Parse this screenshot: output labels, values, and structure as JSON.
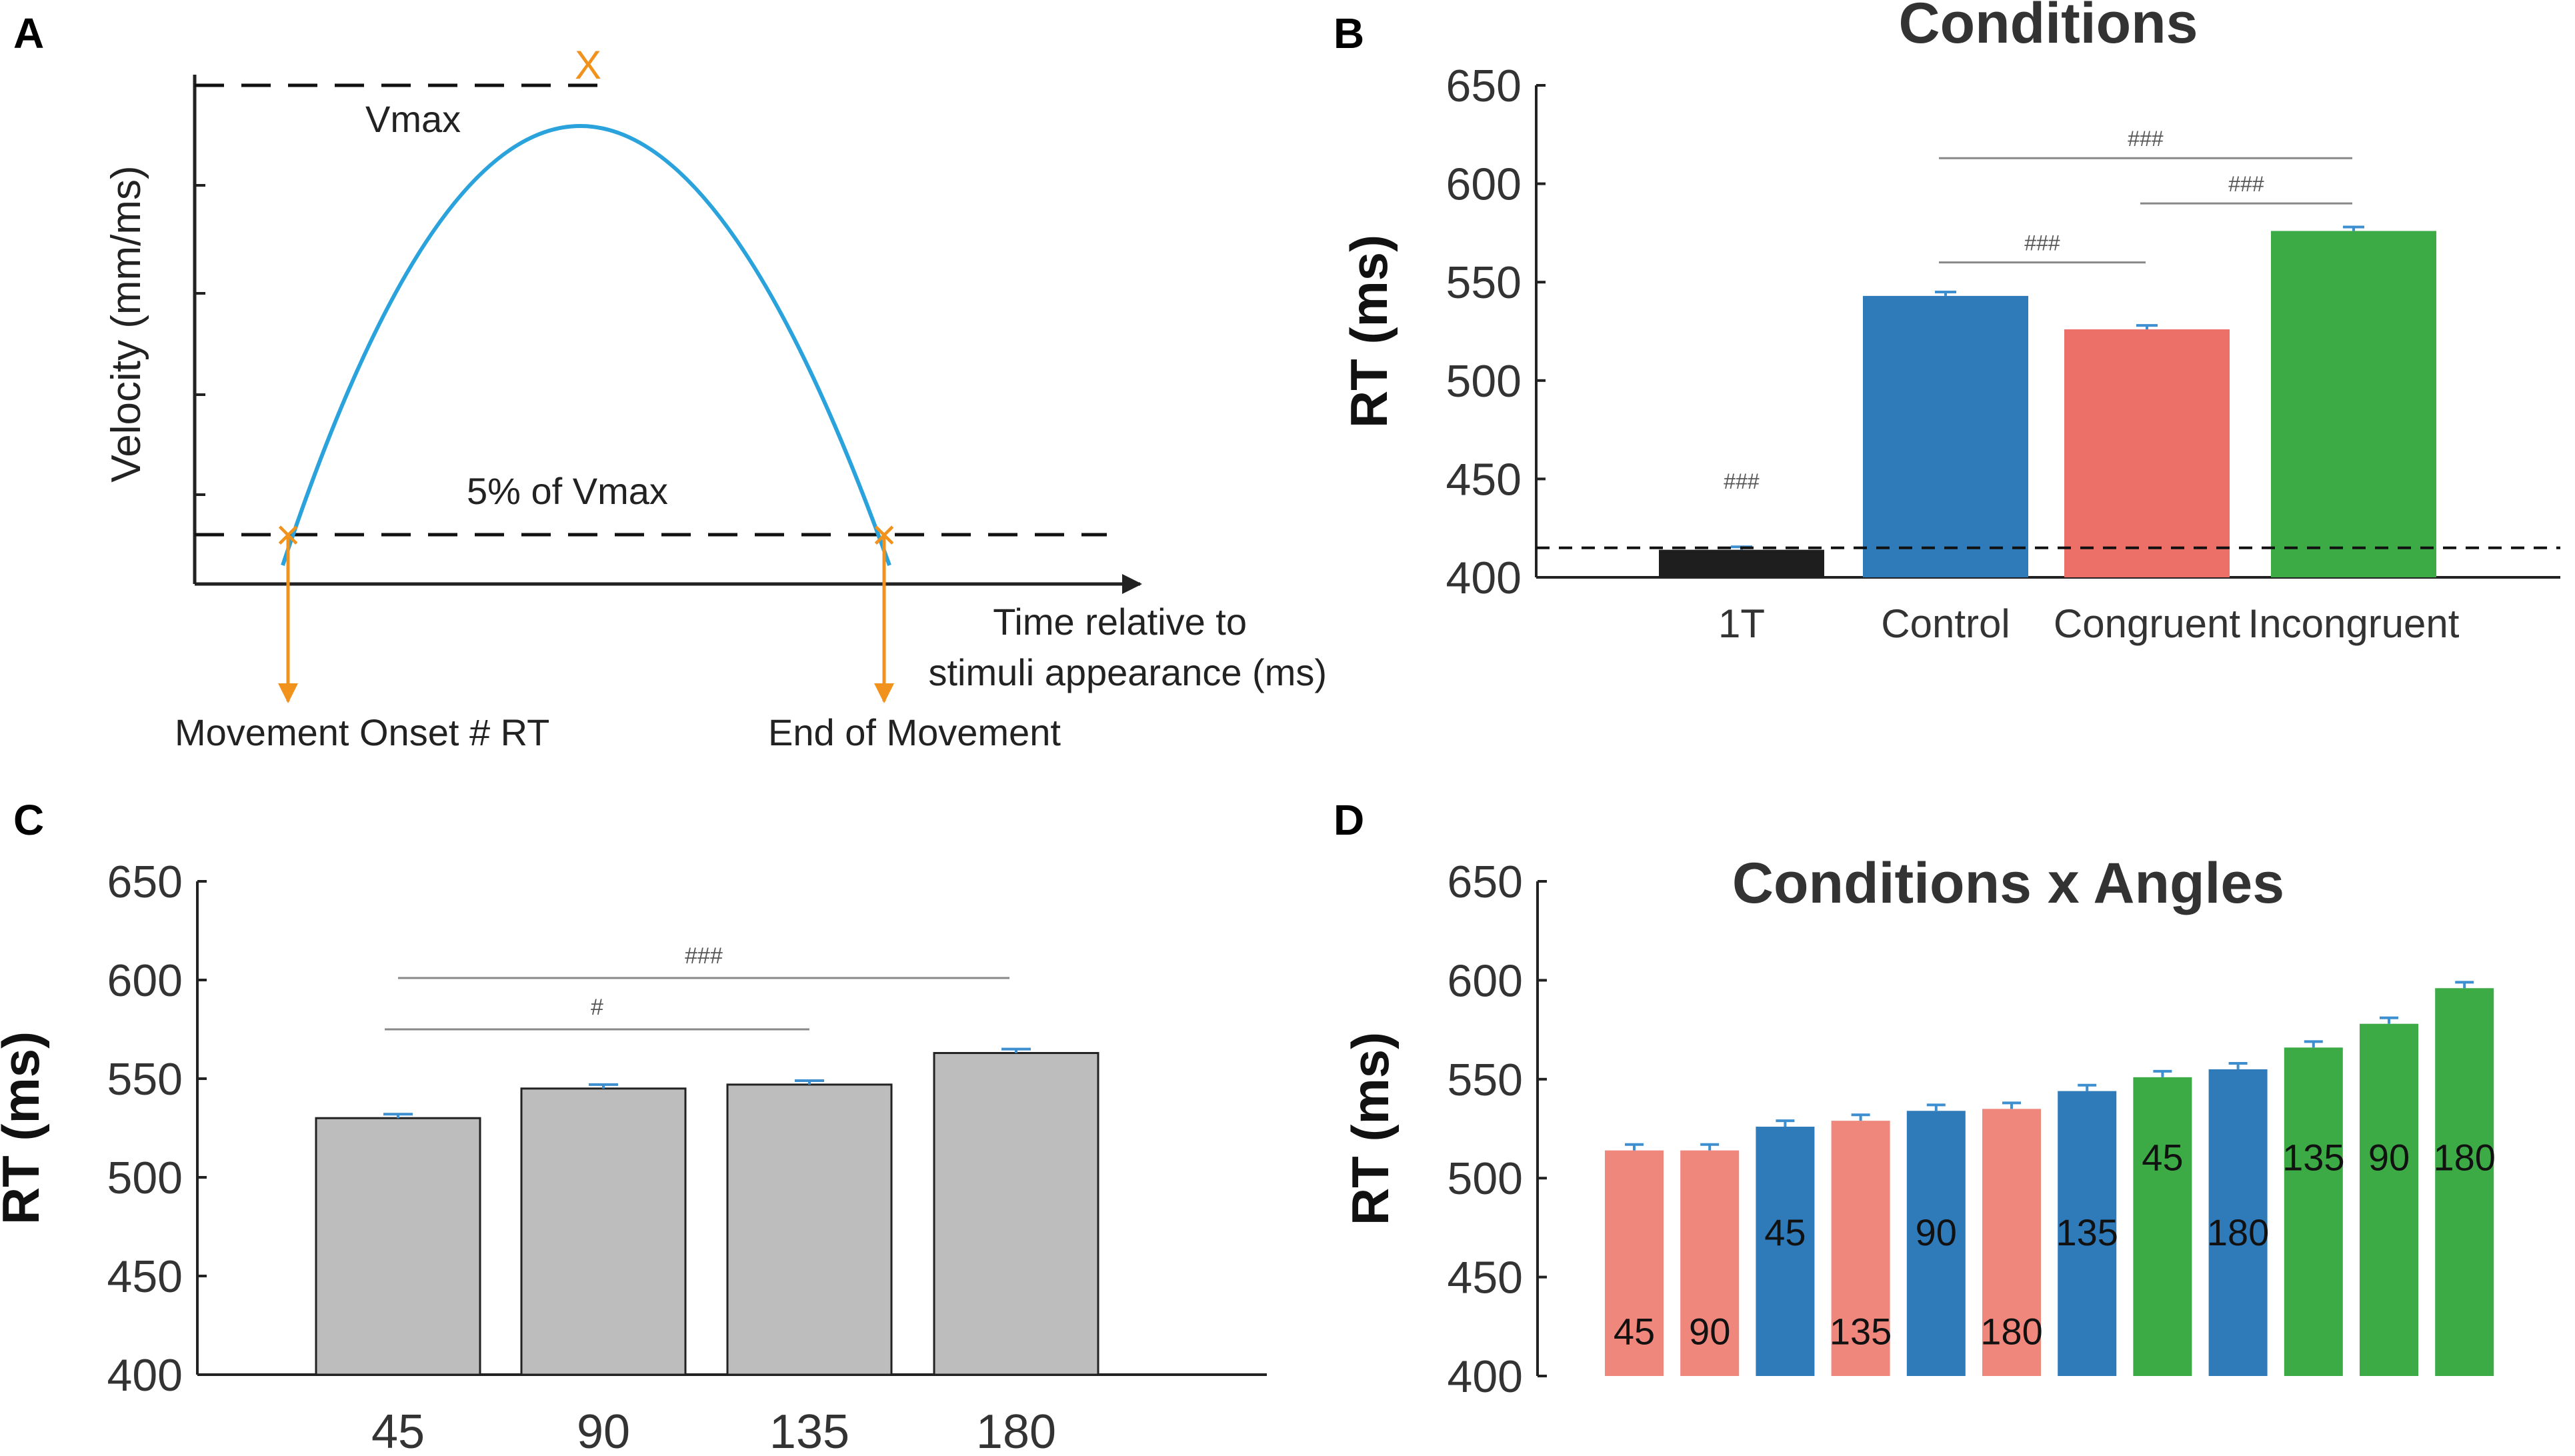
{
  "colors": {
    "control": "#2f7ab9",
    "congruent": "#ec7068",
    "congruent_d": "#ef877c",
    "incongruent": "#3caa45",
    "one_target": "#1e1e1e",
    "grey_bar": "#bdbdbd",
    "velocity_curve": "#2aa2dc",
    "marker": "#f0921c",
    "error_bar": "#3e8fd0"
  },
  "chart_data": [
    {
      "panel": "A",
      "type": "line",
      "title": "",
      "xlabel": "Time relative to stimuli appearance (ms)",
      "xlabel_lines": [
        "Time relative to",
        "stimuli appearance (ms)"
      ],
      "ylabel": "Velocity (mm/ms)",
      "labels": {
        "vmax": "Vmax",
        "threshold": "5% of Vmax",
        "peak_marker": "X",
        "onset_marker": "×",
        "end_marker": "×"
      },
      "annotations": {
        "onset": "Movement Onset # RT",
        "end": "End of Movement"
      },
      "curve": {
        "x": [
          0,
          0.5,
          1
        ],
        "y": [
          0.05,
          1,
          0.05
        ],
        "shape": "inverted parabola"
      }
    },
    {
      "panel": "B",
      "type": "bar",
      "title": "Conditions",
      "xlabel": "",
      "ylabel": "RT (ms)",
      "ylim": [
        400,
        650
      ],
      "yticks": [
        400,
        450,
        500,
        550,
        600,
        650
      ],
      "categories": [
        "1T",
        "Control",
        "Congruent",
        "Incongruent"
      ],
      "values": [
        414,
        543,
        526,
        576
      ],
      "errors": [
        1.5,
        2,
        2,
        2
      ],
      "bar_colors": [
        "one_target",
        "control",
        "congruent",
        "incongruent"
      ],
      "reference_line": 415,
      "significance": [
        {
          "from": 1,
          "to": 3,
          "label": "###",
          "y": 613
        },
        {
          "from": 2,
          "to": 3,
          "label": "###",
          "y": 590
        },
        {
          "from": 1,
          "to": 2,
          "label": "###",
          "y": 560
        },
        {
          "at": 0,
          "label": "###",
          "y": 445
        }
      ]
    },
    {
      "panel": "C",
      "type": "bar",
      "title": "",
      "xlabel": "",
      "ylabel": "RT (ms)",
      "ylim": [
        400,
        650
      ],
      "yticks": [
        400,
        450,
        500,
        550,
        600,
        650
      ],
      "categories": [
        "45",
        "90",
        "135",
        "180"
      ],
      "values": [
        530,
        545,
        547,
        563
      ],
      "errors": [
        2,
        2,
        2,
        2
      ],
      "significance": [
        {
          "from": 0,
          "to": 3,
          "label": "###",
          "y": 601
        },
        {
          "from": 0,
          "to": 2,
          "label": "#",
          "y": 575
        }
      ]
    },
    {
      "panel": "D",
      "type": "bar",
      "title": "Conditions x Angles",
      "xlabel": "",
      "ylabel": "RT (ms)",
      "ylim": [
        400,
        650
      ],
      "yticks": [
        400,
        450,
        500,
        550,
        600,
        650
      ],
      "categories": [
        "45",
        "90",
        "45",
        "135",
        "90",
        "180",
        "135",
        "45",
        "180",
        "135",
        "90",
        "180"
      ],
      "condition": [
        "congruent_d",
        "congruent_d",
        "control",
        "congruent_d",
        "control",
        "congruent_d",
        "control",
        "incongruent",
        "control",
        "incongruent",
        "incongruent",
        "incongruent"
      ],
      "values": [
        514,
        514,
        526,
        529,
        534,
        535,
        544,
        551,
        555,
        566,
        578,
        596
      ],
      "errors": [
        3,
        3,
        3,
        3,
        3,
        3,
        3,
        3,
        3,
        3,
        3,
        3
      ],
      "label_y": [
        416,
        416,
        466,
        416,
        466,
        416,
        466,
        504,
        466,
        504,
        504,
        504
      ]
    }
  ],
  "panels": {
    "A": "A",
    "B": "B",
    "C": "C",
    "D": "D"
  }
}
